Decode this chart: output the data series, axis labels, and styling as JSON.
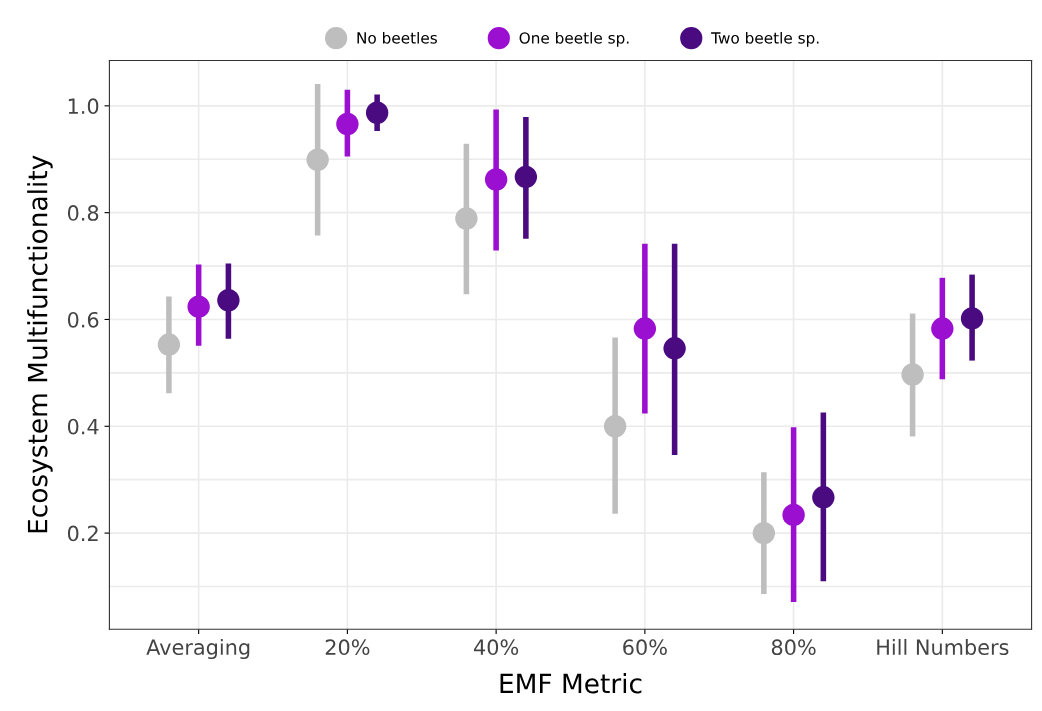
{
  "chart_data": {
    "type": "scatter",
    "xlabel": "EMF Metric",
    "ylabel": "Ecosystem Multifunctionality",
    "categories": [
      "Averaging",
      "20%",
      "40%",
      "60%",
      "80%",
      "Hill Numbers"
    ],
    "series": [
      {
        "name": "No beetles",
        "color": "#bebebe",
        "values": [
          0.553,
          0.899,
          0.789,
          0.4,
          0.2,
          0.497
        ],
        "errors": [
          [
            0.462,
            0.643
          ],
          [
            0.757,
            1.041
          ],
          [
            0.647,
            0.929
          ],
          [
            0.236,
            0.566
          ],
          [
            0.086,
            0.314
          ],
          [
            0.381,
            0.611
          ]
        ]
      },
      {
        "name": "One beetle sp.",
        "color": "#9b0fd1",
        "values": [
          0.624,
          0.966,
          0.862,
          0.583,
          0.234,
          0.583
        ],
        "errors": [
          [
            0.551,
            0.703
          ],
          [
            0.905,
            1.03
          ],
          [
            0.729,
            0.993
          ],
          [
            0.424,
            0.742
          ],
          [
            0.071,
            0.398
          ],
          [
            0.488,
            0.678
          ]
        ]
      },
      {
        "name": "Two beetle sp.",
        "color": "#4a0a80",
        "values": [
          0.636,
          0.987,
          0.867,
          0.546,
          0.267,
          0.602
        ],
        "errors": [
          [
            0.564,
            0.705
          ],
          [
            0.953,
            1.021
          ],
          [
            0.751,
            0.979
          ],
          [
            0.346,
            0.742
          ],
          [
            0.11,
            0.426
          ],
          [
            0.523,
            0.684
          ]
        ]
      }
    ],
    "ylim": [
      0.02,
      1.085
    ],
    "yticks": [
      {
        "value": 0.1,
        "label": null
      },
      0.2,
      {
        "value": 0.3,
        "label": null
      },
      0.4,
      {
        "value": 0.5,
        "label": null
      },
      0.6,
      {
        "value": 0.7,
        "label": null
      },
      0.8,
      {
        "value": 0.9,
        "label": null
      },
      {
        "value": 1.0,
        "label": "1.0"
      }
    ],
    "grid": true,
    "legend": "top",
    "marker": "circle"
  }
}
